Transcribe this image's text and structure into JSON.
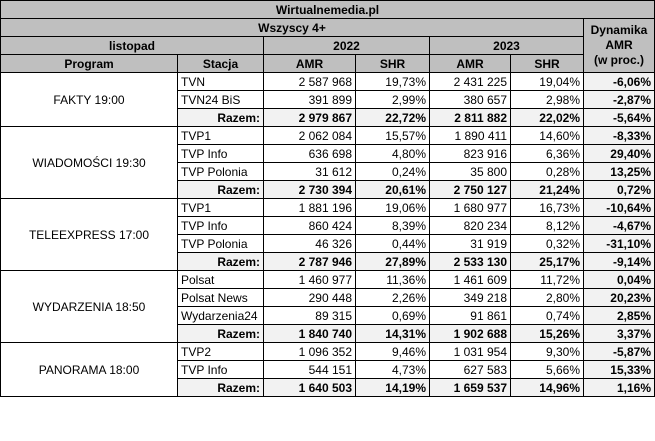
{
  "title": "Wirtualnemedia.pl",
  "audience": "Wszyscy 4+",
  "period": "listopad",
  "year_a": "2022",
  "year_b": "2023",
  "dynamics_header": [
    "Dynamika",
    "AMR",
    "(w proc.)"
  ],
  "columns": {
    "program": "Program",
    "station": "Stacja",
    "amr": "AMR",
    "shr": "SHR"
  },
  "groups": [
    {
      "program": "FAKTY 19:00",
      "rows": [
        {
          "station": "TVN",
          "amr_a": "2 587 968",
          "shr_a": "19,73%",
          "amr_b": "2 431 225",
          "shr_b": "19,04%",
          "dyn": "-6,06%"
        },
        {
          "station": "TVN24 BiS",
          "amr_a": "391 899",
          "shr_a": "2,99%",
          "amr_b": "380 657",
          "shr_b": "2,98%",
          "dyn": "-2,87%"
        },
        {
          "station": "Razem:",
          "amr_a": "2 979 867",
          "shr_a": "22,72%",
          "amr_b": "2 811 882",
          "shr_b": "22,02%",
          "dyn": "-5,64%"
        }
      ]
    },
    {
      "program": "WIADOMOŚCI 19:30",
      "rows": [
        {
          "station": "TVP1",
          "amr_a": "2 062 084",
          "shr_a": "15,57%",
          "amr_b": "1 890 411",
          "shr_b": "14,60%",
          "dyn": "-8,33%"
        },
        {
          "station": "TVP Info",
          "amr_a": "636 698",
          "shr_a": "4,80%",
          "amr_b": "823 916",
          "shr_b": "6,36%",
          "dyn": "29,40%"
        },
        {
          "station": "TVP Polonia",
          "amr_a": "31 612",
          "shr_a": "0,24%",
          "amr_b": "35 800",
          "shr_b": "0,28%",
          "dyn": "13,25%"
        },
        {
          "station": "Razem:",
          "amr_a": "2 730 394",
          "shr_a": "20,61%",
          "amr_b": "2 750 127",
          "shr_b": "21,24%",
          "dyn": "0,72%"
        }
      ]
    },
    {
      "program": "TELEEXPRESS 17:00",
      "rows": [
        {
          "station": "TVP1",
          "amr_a": "1 881 196",
          "shr_a": "19,06%",
          "amr_b": "1 680 977",
          "shr_b": "16,73%",
          "dyn": "-10,64%"
        },
        {
          "station": "TVP Info",
          "amr_a": "860 424",
          "shr_a": "8,39%",
          "amr_b": "820 234",
          "shr_b": "8,12%",
          "dyn": "-4,67%"
        },
        {
          "station": "TVP Polonia",
          "amr_a": "46 326",
          "shr_a": "0,44%",
          "amr_b": "31 919",
          "shr_b": "0,32%",
          "dyn": "-31,10%"
        },
        {
          "station": "Razem:",
          "amr_a": "2 787 946",
          "shr_a": "27,89%",
          "amr_b": "2 533 130",
          "shr_b": "25,17%",
          "dyn": "-9,14%"
        }
      ]
    },
    {
      "program": "WYDARZENIA 18:50",
      "rows": [
        {
          "station": "Polsat",
          "amr_a": "1 460 977",
          "shr_a": "11,36%",
          "amr_b": "1 461 609",
          "shr_b": "11,72%",
          "dyn": "0,04%"
        },
        {
          "station": "Polsat News",
          "amr_a": "290 448",
          "shr_a": "2,26%",
          "amr_b": "349 218",
          "shr_b": "2,80%",
          "dyn": "20,23%"
        },
        {
          "station": "Wydarzenia24",
          "amr_a": "89 315",
          "shr_a": "0,69%",
          "amr_b": "91 861",
          "shr_b": "0,74%",
          "dyn": "2,85%"
        },
        {
          "station": "Razem:",
          "amr_a": "1 840 740",
          "shr_a": "14,31%",
          "amr_b": "1 902 688",
          "shr_b": "15,26%",
          "dyn": "3,37%"
        }
      ]
    },
    {
      "program": "PANORAMA 18:00",
      "rows": [
        {
          "station": "TVP2",
          "amr_a": "1 096 352",
          "shr_a": "9,46%",
          "amr_b": "1 031 954",
          "shr_b": "9,30%",
          "dyn": "-5,87%"
        },
        {
          "station": "TVP Info",
          "amr_a": "544 151",
          "shr_a": "4,73%",
          "amr_b": "627 583",
          "shr_b": "5,66%",
          "dyn": "15,33%"
        },
        {
          "station": "Razem:",
          "amr_a": "1 640 503",
          "shr_a": "14,19%",
          "amr_b": "1 659 537",
          "shr_b": "14,96%",
          "dyn": "1,16%"
        }
      ]
    }
  ]
}
